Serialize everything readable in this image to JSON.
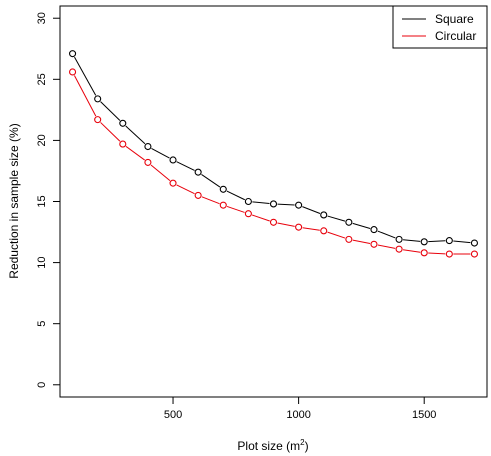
{
  "chart_data": {
    "type": "line",
    "title": "",
    "xlabel": "Plot size (m",
    "xlabel_superscript": "2",
    "xlabel_suffix": ")",
    "ylabel": "Reduction in sample size (%)",
    "xlim": [
      50,
      1750
    ],
    "ylim": [
      -1,
      31
    ],
    "x_ticks": [
      500,
      1000,
      1500
    ],
    "y_ticks": [
      0,
      5,
      10,
      15,
      20,
      25,
      30
    ],
    "grid": false,
    "legend_position": "top-right",
    "x": [
      100,
      200,
      300,
      400,
      500,
      600,
      700,
      800,
      900,
      1000,
      1100,
      1200,
      1300,
      1400,
      1500,
      1600,
      1700
    ],
    "series": [
      {
        "name": "Square",
        "color": "#000000",
        "values": [
          27.1,
          23.4,
          21.4,
          19.5,
          18.4,
          17.4,
          16.0,
          15.0,
          14.8,
          14.7,
          13.9,
          13.3,
          12.7,
          11.9,
          11.7,
          11.8,
          11.6
        ]
      },
      {
        "name": "Circular",
        "color": "#e8000b",
        "values": [
          25.6,
          21.7,
          19.7,
          18.2,
          16.5,
          15.5,
          14.7,
          14.0,
          13.3,
          12.9,
          12.6,
          11.9,
          11.5,
          11.1,
          10.8,
          10.7,
          10.7
        ]
      }
    ]
  }
}
